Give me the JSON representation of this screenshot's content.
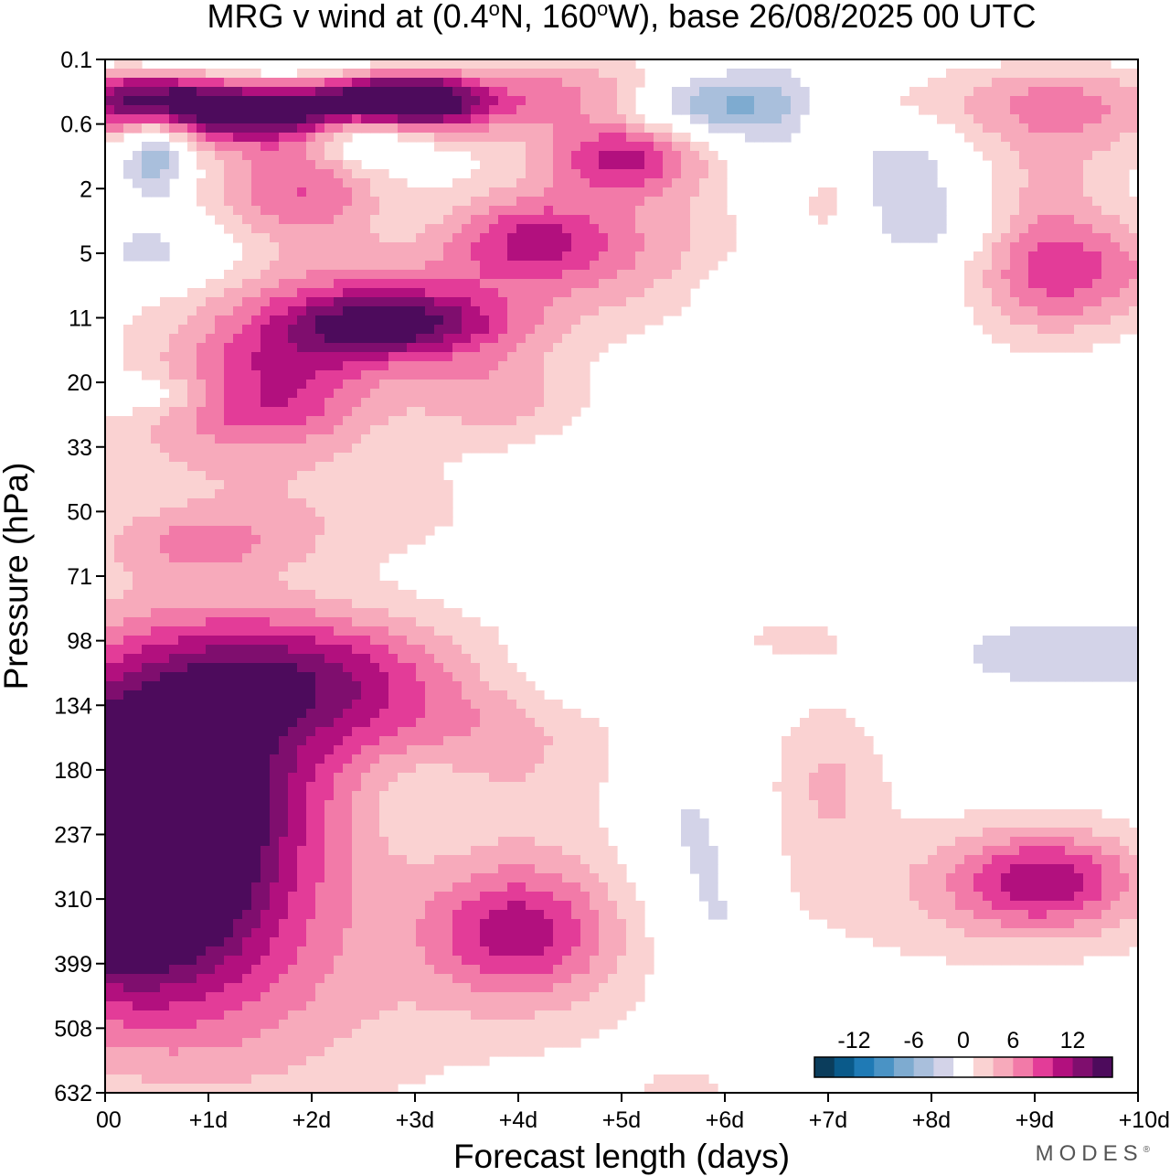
{
  "chart_data": {
    "type": "heatmap",
    "title_parts": {
      "prefix": "MRG v wind at (0.4",
      "deg1": "o",
      "mid": "N, 160",
      "deg2": "o",
      "suffix": "W),  base 26/08/2025  00 UTC"
    },
    "xlabel": "Forecast length (days)",
    "ylabel": "Pressure (hPa)",
    "x_ticks": [
      "00",
      "+1d",
      "+2d",
      "+3d",
      "+4d",
      "+5d",
      "+6d",
      "+7d",
      "+8d",
      "+9d",
      "+10d"
    ],
    "xlim_days": [
      0,
      10
    ],
    "y_ticks": [
      "0.1",
      "0.6",
      "2",
      "5",
      "11",
      "20",
      "33",
      "50",
      "71",
      "98",
      "134",
      "180",
      "237",
      "310",
      "399",
      "508",
      "632"
    ],
    "y_axis_scale": "log-pressure (ordered ticks, evenly spaced)",
    "colorbar": {
      "tick_labels": [
        "-12",
        "-6",
        "0",
        "6",
        "12"
      ],
      "level_colors": [
        "#0b3d5c",
        "#0a5a8a",
        "#1f7ab5",
        "#4a93c5",
        "#7eabd0",
        "#a9bfdc",
        "#d3d3e8",
        "#ffffff",
        "#fad2d2",
        "#f7aabb",
        "#f27aa8",
        "#e33c98",
        "#b2107e",
        "#7f0e6e",
        "#4d0b5c"
      ],
      "levels": [
        -14,
        -12,
        -10,
        -8,
        -6,
        -4,
        -2,
        2,
        4,
        6,
        8,
        10,
        12,
        14
      ]
    },
    "features": [
      {
        "day": 0.0,
        "level": 12.3,
        "value": 14,
        "sx": 0.9,
        "sy": 1.5
      },
      {
        "day": 0.4,
        "level": 12.0,
        "value": 9,
        "sx": 1.2,
        "sy": 1.8
      },
      {
        "day": 1.1,
        "level": 12.2,
        "value": 3,
        "sx": 1.0,
        "sy": 2.0
      },
      {
        "day": 0.8,
        "level": 10.2,
        "value": 5,
        "sx": 1.0,
        "sy": 1.4
      },
      {
        "day": 2.0,
        "level": 9.5,
        "value": 8,
        "sx": 1.0,
        "sy": 0.7
      },
      {
        "day": 3.4,
        "level": 10.5,
        "value": 5,
        "sx": 1.1,
        "sy": 1.0
      },
      {
        "day": 4.0,
        "level": 13.5,
        "value": 8,
        "sx": 0.6,
        "sy": 0.7
      },
      {
        "day": 4.3,
        "level": 13.6,
        "value": 3,
        "sx": 1.2,
        "sy": 1.4
      },
      {
        "day": 1.5,
        "level": 14.8,
        "value": 3,
        "sx": 1.4,
        "sy": 1.5
      },
      {
        "day": 9.1,
        "level": 12.7,
        "value": 8,
        "sx": 0.6,
        "sy": 0.5
      },
      {
        "day": 8.7,
        "level": 12.9,
        "value": 4,
        "sx": 1.4,
        "sy": 0.9
      },
      {
        "day": 7.0,
        "level": 11.1,
        "value": 4,
        "sx": 0.4,
        "sy": 0.9
      },
      {
        "day": 3.0,
        "level": 11.3,
        "value": -3,
        "sx": 0.5,
        "sy": 0.6
      },
      {
        "day": 5.6,
        "level": 12.0,
        "value": -3,
        "sx": 0.4,
        "sy": 1.4
      },
      {
        "day": 6.0,
        "level": 13.5,
        "value": -2.5,
        "sx": 0.3,
        "sy": 1.0
      },
      {
        "day": 4.8,
        "level": 9.5,
        "value": -2.5,
        "sx": 1.0,
        "sy": 0.4
      },
      {
        "day": 9.5,
        "level": 9.2,
        "value": -4,
        "sx": 1.0,
        "sy": 0.4
      },
      {
        "day": 6.6,
        "level": 9.0,
        "value": 2.5,
        "sx": 0.8,
        "sy": 0.3
      },
      {
        "day": 0.9,
        "level": 7.5,
        "value": 4,
        "sx": 0.7,
        "sy": 0.35
      },
      {
        "day": 2.0,
        "level": 7.0,
        "value": 3,
        "sx": 1.4,
        "sy": 0.6
      },
      {
        "day": 1.0,
        "level": 6.0,
        "value": 3,
        "sx": 1.4,
        "sy": 0.5
      },
      {
        "day": 1.6,
        "level": 5.4,
        "value": 7,
        "sx": 0.7,
        "sy": 0.4
      },
      {
        "day": 1.7,
        "level": 4.7,
        "value": 6,
        "sx": 0.8,
        "sy": 0.4
      },
      {
        "day": 0.5,
        "level": 5.2,
        "value": -2.5,
        "sx": 0.4,
        "sy": 0.2
      },
      {
        "day": 1.6,
        "level": 4.0,
        "value": 3,
        "sx": 1.2,
        "sy": 0.6
      },
      {
        "day": 2.8,
        "level": 4.1,
        "value": 9,
        "sx": 0.8,
        "sy": 0.35
      },
      {
        "day": 3.1,
        "level": 4.0,
        "value": 3,
        "sx": 1.0,
        "sy": 0.6
      },
      {
        "day": 3.8,
        "level": 5.2,
        "value": 5,
        "sx": 0.6,
        "sy": 0.5
      },
      {
        "day": 4.1,
        "level": 2.8,
        "value": 8,
        "sx": 0.6,
        "sy": 0.5
      },
      {
        "day": 5.1,
        "level": 3.3,
        "value": 3,
        "sx": 0.8,
        "sy": 0.7
      },
      {
        "day": 2.0,
        "level": 2.0,
        "value": 6,
        "sx": 0.5,
        "sy": 0.6
      },
      {
        "day": 1.2,
        "level": 2.1,
        "value": 3,
        "sx": 0.8,
        "sy": 0.8
      },
      {
        "day": 2.5,
        "level": 3.6,
        "value": 3,
        "sx": 0.9,
        "sy": 0.6
      },
      {
        "day": 5.0,
        "level": 1.5,
        "value": 8,
        "sx": 0.5,
        "sy": 0.4
      },
      {
        "day": 5.5,
        "level": 2.0,
        "value": 3,
        "sx": 1.4,
        "sy": 1.0
      },
      {
        "day": 0.5,
        "level": 1.4,
        "value": -8,
        "sx": 0.25,
        "sy": 0.6
      },
      {
        "day": 0.6,
        "level": 3.0,
        "value": -4,
        "sx": 0.6,
        "sy": 0.4
      },
      {
        "day": 2.5,
        "level": 1.1,
        "value": -9,
        "sx": 0.4,
        "sy": 0.35
      },
      {
        "day": 1.5,
        "level": 0.8,
        "value": 15,
        "sx": 1.3,
        "sy": 0.35
      },
      {
        "day": 2.9,
        "level": 0.6,
        "value": 15,
        "sx": 0.5,
        "sy": 0.3
      },
      {
        "day": 0.4,
        "level": 0.5,
        "value": 9,
        "sx": 0.5,
        "sy": 0.3
      },
      {
        "day": 4.6,
        "level": 0.5,
        "value": 6,
        "sx": 0.8,
        "sy": 0.4
      },
      {
        "day": 1.5,
        "level": 0.1,
        "value": -3,
        "sx": 1.2,
        "sy": 0.2
      },
      {
        "day": 5.8,
        "level": 0.7,
        "value": -8,
        "sx": 0.7,
        "sy": 0.35
      },
      {
        "day": 6.5,
        "level": 1.5,
        "value": -4,
        "sx": 0.4,
        "sy": 0.9
      },
      {
        "day": 7.6,
        "level": 1.6,
        "value": -5,
        "sx": 0.5,
        "sy": 0.6
      },
      {
        "day": 8.0,
        "level": 2.6,
        "value": -3,
        "sx": 0.6,
        "sy": 0.4
      },
      {
        "day": 6.5,
        "level": 3.6,
        "value": -2.5,
        "sx": 0.6,
        "sy": 0.4
      },
      {
        "day": 9.1,
        "level": 3.0,
        "value": 6,
        "sx": 0.5,
        "sy": 1.0
      },
      {
        "day": 9.8,
        "level": 3.3,
        "value": 5,
        "sx": 0.8,
        "sy": 0.6
      },
      {
        "day": 9.2,
        "level": 0.6,
        "value": 5,
        "sx": 1.0,
        "sy": 0.4
      },
      {
        "day": 9.3,
        "level": 1.2,
        "value": 3,
        "sx": 0.7,
        "sy": 0.5
      },
      {
        "day": 7.0,
        "level": 2.1,
        "value": 4,
        "sx": 0.3,
        "sy": 0.5
      },
      {
        "day": 7.2,
        "level": 1.0,
        "value": 3,
        "sx": 0.6,
        "sy": 0.4
      },
      {
        "day": 5.6,
        "level": 16.0,
        "value": 3,
        "sx": 0.3,
        "sy": 0.3
      }
    ]
  },
  "branding": "MODES",
  "branding_mark": "®"
}
